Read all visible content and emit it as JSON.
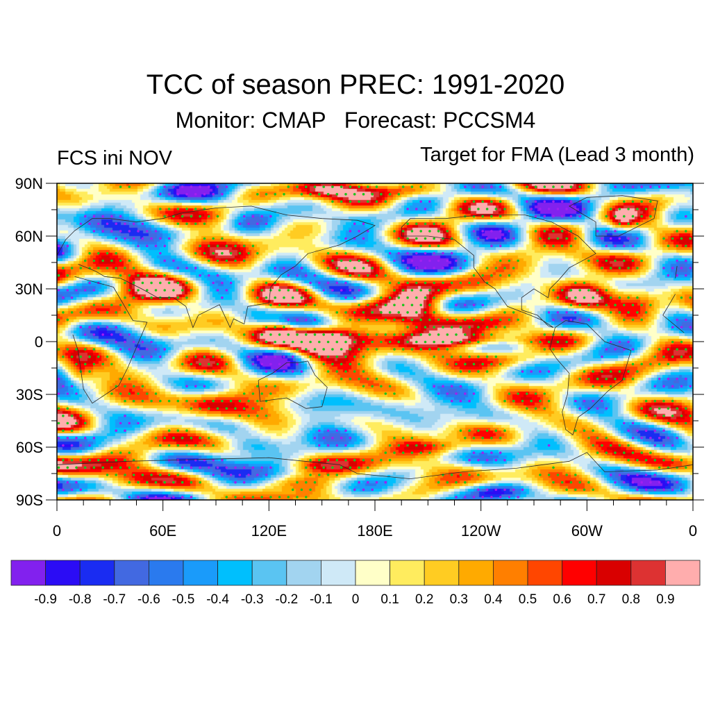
{
  "header": {
    "title": "TCC of season PREC: 1991-2020",
    "subtitle": "Monitor: CMAP   Forecast: PCCSM4",
    "left_label": "FCS ini NOV",
    "right_label": "Target for FMA (Lead 3 month)"
  },
  "chart_data": {
    "type": "heatmap",
    "title": "TCC of season PREC: 1991-2020",
    "subtitle": "Monitor: CMAP   Forecast: PCCSM4",
    "annotations": [
      "FCS ini NOV",
      "Target for FMA (Lead 3 month)"
    ],
    "projection": "cylindrical-equidistant",
    "xlim": [
      0,
      360
    ],
    "ylim": [
      -90,
      90
    ],
    "x_ticks": [
      {
        "value": 0,
        "label": "0"
      },
      {
        "value": 60,
        "label": "60E"
      },
      {
        "value": 120,
        "label": "120E"
      },
      {
        "value": 180,
        "label": "180E"
      },
      {
        "value": 240,
        "label": "120W"
      },
      {
        "value": 300,
        "label": "60W"
      },
      {
        "value": 360,
        "label": "0"
      }
    ],
    "y_ticks": [
      {
        "value": 90,
        "label": "90N"
      },
      {
        "value": 60,
        "label": "60N"
      },
      {
        "value": 30,
        "label": "30N"
      },
      {
        "value": 0,
        "label": "0"
      },
      {
        "value": -30,
        "label": "30S"
      },
      {
        "value": -60,
        "label": "60S"
      },
      {
        "value": -90,
        "label": "90S"
      }
    ],
    "minor_tick_step_deg": 15,
    "colorbar": {
      "levels": [
        -0.9,
        -0.8,
        -0.7,
        -0.6,
        -0.5,
        -0.4,
        -0.3,
        -0.2,
        -0.1,
        0,
        0.1,
        0.2,
        0.3,
        0.4,
        0.5,
        0.6,
        0.7,
        0.8,
        0.9
      ],
      "labels": [
        "-0.9",
        "-0.8",
        "-0.7",
        "-0.6",
        "-0.5",
        "-0.4",
        "-0.3",
        "-0.2",
        "-0.1",
        "0",
        "0.1",
        "0.2",
        "0.3",
        "0.4",
        "0.5",
        "0.6",
        "0.7",
        "0.8",
        "0.9"
      ],
      "colors": [
        "#8221ee",
        "#2b0cf5",
        "#1a2cf2",
        "#4269e1",
        "#2a7aee",
        "#1a9bfa",
        "#00bffd",
        "#5ac4f2",
        "#a2d4f0",
        "#cfe9f7",
        "#ffffc8",
        "#ffec5e",
        "#ffcc22",
        "#ffaa00",
        "#ff7f00",
        "#ff4600",
        "#ff0000",
        "#d90000",
        "#dd3232",
        "#ffadad"
      ]
    },
    "stippling": {
      "significant_positive_color": "#1ec31e",
      "significant_negative_color": "#a020f0",
      "threshold": 0.35
    },
    "field_features": [
      {
        "name": "equatorial-pacific-enso",
        "lon": 185,
        "lat": 0,
        "lon_spread": 35,
        "lat_spread": 5,
        "value": 0.78
      },
      {
        "name": "equatorial-pacific-west-tongue",
        "lon": 150,
        "lat": 4,
        "lon_spread": 22,
        "lat_spread": 3.5,
        "value": 0.62
      },
      {
        "name": "equatorial-pacific-east-tongue",
        "lon": 235,
        "lat": 1,
        "lon_spread": 25,
        "lat_spread": 2.5,
        "value": 0.55
      },
      {
        "name": "philippines-maritime",
        "lon": 125,
        "lat": 10,
        "lon_spread": 8,
        "lat_spread": 6,
        "value": 0.6
      },
      {
        "name": "north-pacific-subtropical-west",
        "lon": 175,
        "lat": 22,
        "lon_spread": 18,
        "lat_spread": 7,
        "value": 0.55
      },
      {
        "name": "north-pacific-subtropical-east",
        "lon": 205,
        "lat": 22,
        "lon_spread": 10,
        "lat_spread": 9,
        "value": 0.6
      },
      {
        "name": "south-pacific-convergence-east",
        "lon": 250,
        "lat": -10,
        "lon_spread": 15,
        "lat_spread": 4,
        "value": 0.65
      },
      {
        "name": "atlantic-subtropical-north-a",
        "lon": 298,
        "lat": 24,
        "lon_spread": 10,
        "lat_spread": 6,
        "value": 0.6
      },
      {
        "name": "atlantic-subtropical-north-b",
        "lon": 330,
        "lat": 24,
        "lon_spread": 10,
        "lat_spread": 6,
        "value": 0.65
      },
      {
        "name": "greenland-east",
        "lon": 320,
        "lat": 68,
        "lon_spread": 6,
        "lat_spread": 6,
        "value": 0.6
      },
      {
        "name": "middle-east-belt",
        "lon": 65,
        "lat": 30,
        "lon_spread": 25,
        "lat_spread": 6,
        "value": 0.45
      },
      {
        "name": "southern-africa",
        "lon": 12,
        "lat": -18,
        "lon_spread": 6,
        "lat_spread": 5,
        "value": 0.6
      },
      {
        "name": "maritime-continent-negative",
        "lon": 130,
        "lat": -5,
        "lon_spread": 9,
        "lat_spread": 5,
        "value": -0.45
      },
      {
        "name": "southern-ocean-negative",
        "lon": 110,
        "lat": -60,
        "lon_spread": 12,
        "lat_spread": 4,
        "value": -0.55
      },
      {
        "name": "scandinavia-negative",
        "lon": 20,
        "lat": 68,
        "lon_spread": 14,
        "lat_spread": 6,
        "value": -0.45
      },
      {
        "name": "north-atlantic-high-lat-negative",
        "lon": 350,
        "lat": 68,
        "lon_spread": 8,
        "lat_spread": 8,
        "value": -0.5
      },
      {
        "name": "antarctic-pacific-negative",
        "lon": 250,
        "lat": -85,
        "lon_spread": 12,
        "lat_spread": 3,
        "value": -0.5
      },
      {
        "name": "antarctic-indian-negative",
        "lon": 130,
        "lat": -85,
        "lon_spread": 12,
        "lat_spread": 3,
        "value": -0.45
      },
      {
        "name": "siberia-negative",
        "lon": 110,
        "lat": 68,
        "lon_spread": 10,
        "lat_spread": 5,
        "value": -0.45
      },
      {
        "name": "south-pacific-midlat-negative",
        "lon": 235,
        "lat": -45,
        "lon_spread": 15,
        "lat_spread": 5,
        "value": -0.35
      },
      {
        "name": "arctic-ocean-positive",
        "lon": 150,
        "lat": 86,
        "lon_spread": 12,
        "lat_spread": 3,
        "value": 0.45
      },
      {
        "name": "arctic-pacific-positive",
        "lon": 200,
        "lat": 86,
        "lon_spread": 15,
        "lat_spread": 3,
        "value": 0.45
      },
      {
        "name": "antarctic-positive-a",
        "lon": 145,
        "lat": -70,
        "lon_spread": 12,
        "lat_spread": 3,
        "value": 0.45
      },
      {
        "name": "antarctic-positive-b",
        "lon": 350,
        "lat": -70,
        "lon_spread": 15,
        "lat_spread": 4,
        "value": 0.45
      },
      {
        "name": "antarctic-positive-c",
        "lon": 40,
        "lat": -80,
        "lon_spread": 12,
        "lat_spread": 4,
        "value": 0.4
      },
      {
        "name": "south-indian-positive",
        "lon": 85,
        "lat": -38,
        "lon_spread": 12,
        "lat_spread": 6,
        "value": 0.45
      },
      {
        "name": "southern-midlat-positive",
        "lon": 215,
        "lat": -60,
        "lon_spread": 15,
        "lat_spread": 3,
        "value": 0.45
      }
    ]
  }
}
